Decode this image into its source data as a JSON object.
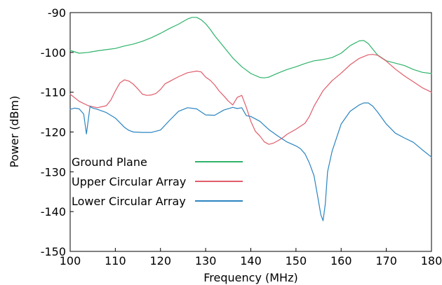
{
  "chart_data": {
    "type": "line",
    "xlabel": "Frequency (MHz)",
    "ylabel": "Power (dBm)",
    "xlim": [
      100,
      180
    ],
    "ylim": [
      -150,
      -90
    ],
    "xticks": [
      "100",
      "110",
      "120",
      "130",
      "140",
      "150",
      "160",
      "170",
      "180"
    ],
    "yticks": [
      "-90",
      "-100",
      "-110",
      "-120",
      "-130",
      "-140",
      "-150"
    ],
    "grid": false,
    "legend_position": "bottom-left",
    "series": [
      {
        "name": "Ground Plane",
        "color": "#2db36a",
        "x": [
          100,
          102,
          104,
          106,
          108,
          110,
          112,
          114,
          116,
          118,
          120,
          122,
          124,
          126,
          127,
          128,
          129,
          130,
          131,
          132,
          134,
          136,
          138,
          140,
          142,
          143,
          144,
          146,
          148,
          150,
          152,
          154,
          156,
          158,
          160,
          162,
          164,
          165,
          166,
          168,
          170,
          172,
          174,
          176,
          178,
          180
        ],
        "y": [
          -99.5,
          -100.2,
          -100.0,
          -99.6,
          -99.3,
          -99.0,
          -98.4,
          -97.9,
          -97.2,
          -96.3,
          -95.2,
          -94.0,
          -92.9,
          -91.6,
          -91.2,
          -91.2,
          -91.8,
          -92.8,
          -94.2,
          -95.8,
          -98.6,
          -101.4,
          -103.6,
          -105.3,
          -106.3,
          -106.4,
          -106.2,
          -105.2,
          -104.3,
          -103.6,
          -102.8,
          -102.1,
          -101.8,
          -101.3,
          -100.2,
          -98.3,
          -97.1,
          -97.0,
          -97.8,
          -100.6,
          -102.1,
          -102.7,
          -103.3,
          -104.3,
          -105.0,
          -105.3
        ]
      },
      {
        "name": "Upper Circular Array",
        "color": "#e05c6a",
        "x": [
          100,
          102,
          104,
          106,
          108,
          109,
          110,
          111,
          112,
          113,
          114,
          115,
          116,
          117,
          118,
          119,
          120,
          121,
          122,
          124,
          126,
          127,
          128,
          129,
          130,
          131,
          132,
          133,
          134,
          135,
          136,
          137,
          138,
          139,
          140,
          141,
          142,
          143,
          144,
          145,
          146,
          147,
          148,
          150,
          152,
          153,
          154,
          156,
          158,
          160,
          162,
          164,
          166,
          167,
          168,
          170,
          172,
          174,
          176,
          178,
          180
        ],
        "y": [
          -110.5,
          -112.3,
          -113.4,
          -113.9,
          -113.4,
          -112.0,
          -109.7,
          -107.7,
          -106.9,
          -107.2,
          -108.0,
          -109.2,
          -110.5,
          -110.8,
          -110.7,
          -110.3,
          -109.3,
          -107.9,
          -107.3,
          -106.1,
          -105.1,
          -104.9,
          -104.7,
          -104.9,
          -106.2,
          -107.0,
          -108.2,
          -109.7,
          -110.9,
          -112.2,
          -113.2,
          -111.3,
          -110.8,
          -113.8,
          -117.3,
          -119.8,
          -121.0,
          -122.5,
          -123.1,
          -122.8,
          -122.2,
          -121.5,
          -120.6,
          -119.3,
          -117.8,
          -116.0,
          -113.5,
          -109.6,
          -107.1,
          -105.2,
          -103.1,
          -101.5,
          -100.6,
          -100.5,
          -100.7,
          -102.2,
          -104.2,
          -105.9,
          -107.4,
          -108.9,
          -110.0
        ]
      },
      {
        "name": "Lower Circular Array",
        "color": "#2a84c0",
        "x": [
          100,
          101,
          102,
          103,
          103.6,
          104,
          104.4,
          105,
          106,
          108,
          110,
          112,
          113,
          114,
          116,
          118,
          120,
          122,
          124,
          126,
          128,
          130,
          132,
          134,
          136,
          137,
          138,
          139,
          140,
          142,
          144,
          146,
          148,
          150,
          151,
          152,
          153,
          154,
          155,
          155.5,
          156,
          156.5,
          157,
          158,
          160,
          162,
          164,
          165,
          166,
          167,
          168,
          170,
          172,
          174,
          176,
          178,
          180
        ],
        "y": [
          -114.3,
          -114.0,
          -114.2,
          -115.5,
          -120.5,
          -117.0,
          -113.6,
          -114.0,
          -114.3,
          -115.1,
          -116.5,
          -118.8,
          -119.6,
          -120.0,
          -120.1,
          -120.1,
          -119.5,
          -117.1,
          -114.8,
          -113.9,
          -114.2,
          -115.7,
          -115.8,
          -114.5,
          -113.8,
          -114.1,
          -113.9,
          -115.9,
          -116.1,
          -117.3,
          -119.4,
          -121.0,
          -122.5,
          -123.5,
          -124.2,
          -125.5,
          -127.9,
          -131.0,
          -137.5,
          -140.8,
          -142.3,
          -138.0,
          -130.0,
          -124.8,
          -118.0,
          -114.8,
          -113.2,
          -112.7,
          -112.7,
          -113.5,
          -114.9,
          -118.0,
          -120.3,
          -121.5,
          -122.6,
          -124.5,
          -126.3
        ]
      }
    ]
  }
}
